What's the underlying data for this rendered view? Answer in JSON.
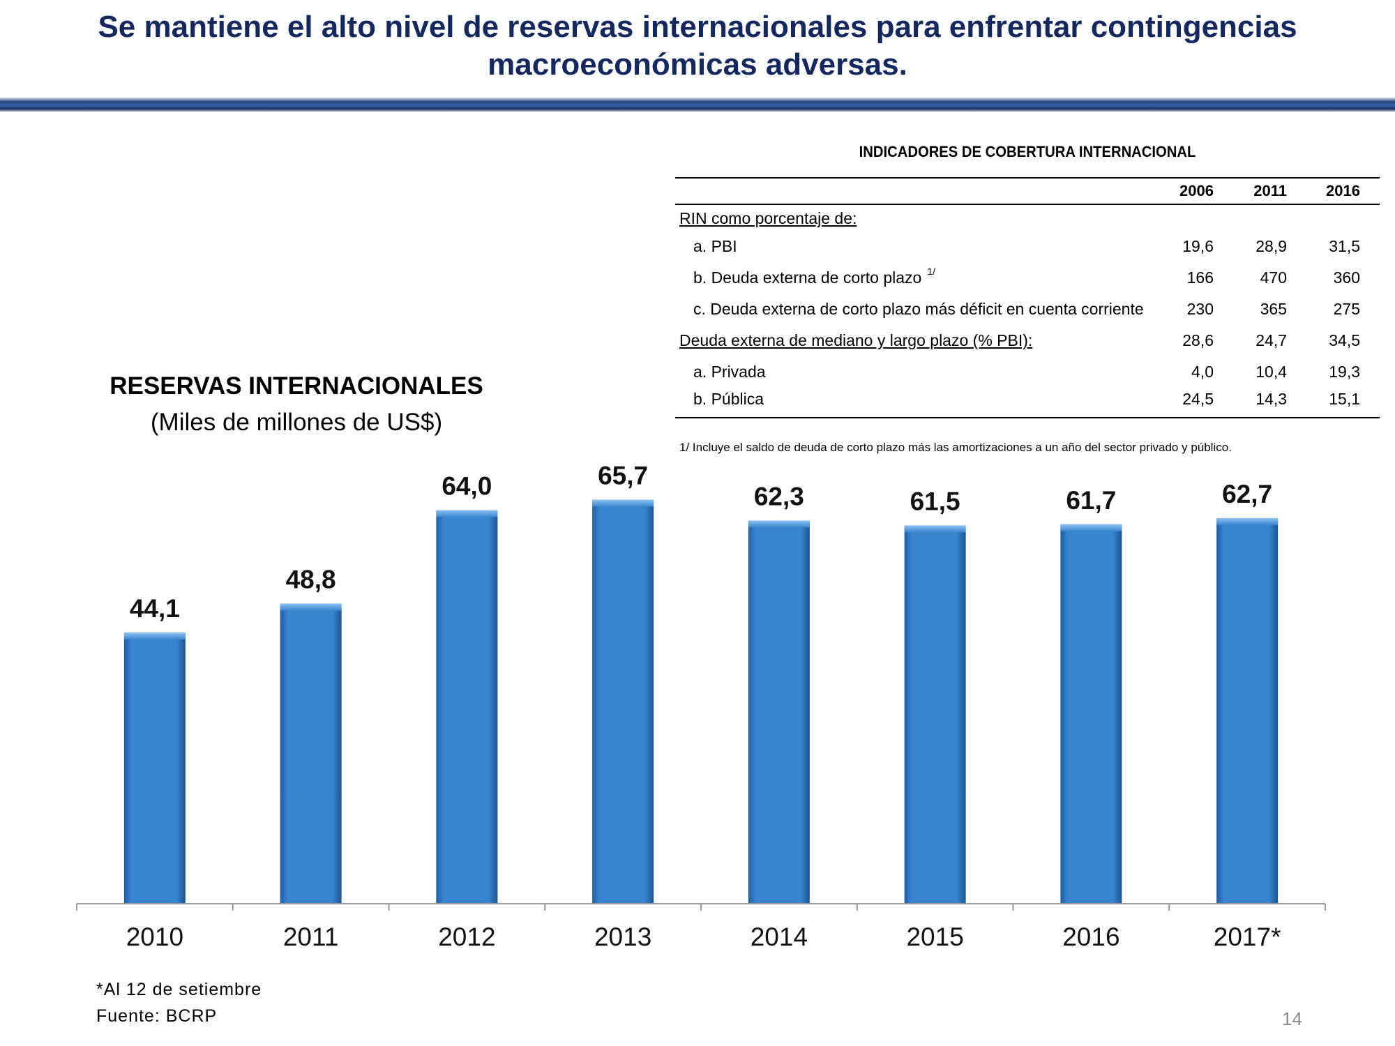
{
  "title": {
    "line1": "Se mantiene el alto nivel de reservas internacionales para enfrentar contingencias",
    "line2": "macroeconómicas adversas."
  },
  "table": {
    "title": "INDICADORES DE COBERTURA INTERNACIONAL",
    "years": [
      "2006",
      "2011",
      "2016"
    ],
    "rows": [
      {
        "label": "RIN como porcentaje de:",
        "values": [
          "",
          "",
          ""
        ]
      },
      {
        "label": "a. PBI",
        "values": [
          "19,6",
          "28,9",
          "31,5"
        ]
      },
      {
        "label": "b. Deuda externa de corto plazo",
        "note": "1/",
        "values": [
          "166",
          "470",
          "360"
        ]
      },
      {
        "label": "c. Deuda externa de corto plazo más déficit en cuenta corriente",
        "values": [
          "230",
          "365",
          "275"
        ]
      },
      {
        "label": "Deuda externa de mediano y largo plazo (% PBI):",
        "values": [
          "28,6",
          "24,7",
          "34,5"
        ]
      },
      {
        "label": "a. Privada",
        "values": [
          "4,0",
          "10,4",
          "19,3"
        ]
      },
      {
        "label": "b. Pública",
        "values": [
          "24,5",
          "14,3",
          "15,1"
        ]
      }
    ],
    "footnote": "1/ Incluye el saldo de deuda de corto plazo más las amortizaciones a un año del sector privado y público."
  },
  "chart_data": {
    "type": "bar",
    "title": "RESERVAS INTERNACIONALES",
    "subtitle": "(Miles de millones de US$)",
    "categories": [
      "2010",
      "2011",
      "2012",
      "2013",
      "2014",
      "2015",
      "2016",
      "2017*"
    ],
    "values": [
      44.1,
      48.8,
      64.0,
      65.7,
      62.3,
      61.5,
      61.7,
      62.7
    ],
    "value_labels": [
      "44,1",
      "48,8",
      "64,0",
      "65,7",
      "62,3",
      "61,5",
      "61,7",
      "62,7"
    ],
    "xlabel": "",
    "ylabel": "",
    "ylim": [
      0,
      70
    ],
    "grid": false,
    "bar_color": "#3a85d0"
  },
  "notes": {
    "line1": "*Al 12 de setiembre",
    "line2": "Fuente: BCRP"
  },
  "page_number": "14"
}
